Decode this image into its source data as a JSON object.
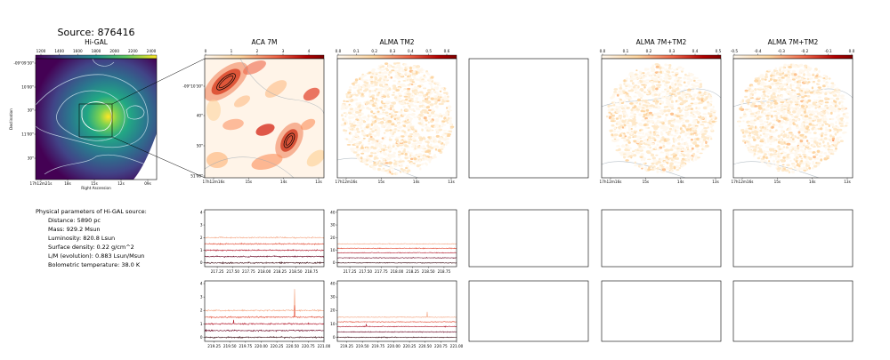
{
  "source_title": "Source: 876416",
  "panel_titles": {
    "higal": "Hi-GAL",
    "aca": "ACA 7M",
    "tm2": "ALMA TM2",
    "m7tm2a": "ALMA 7M+TM2",
    "m7tm2b": "ALMA 7M+TM2"
  },
  "colorbars": {
    "higal": [
      "1200",
      "1400",
      "1600",
      "1800",
      "2000",
      "2200",
      "2400"
    ],
    "aca": [
      "0",
      "1",
      "2",
      "3",
      "4"
    ],
    "tm2": [
      "0.0",
      "0.1",
      "0.2",
      "0.3",
      "0.4",
      "0.5",
      "0.6"
    ],
    "m7tm2a": [
      "0.0",
      "0.1",
      "0.2",
      "0.3",
      "0.4",
      "0.5"
    ],
    "m7tm2b": [
      "-0.5",
      "-0.4",
      "-0.3",
      "-0.2",
      "-0.1",
      "0.0"
    ]
  },
  "higal_axes": {
    "yticks": [
      "-09°09'30\"",
      "10'00\"",
      "30\"",
      "11'00\"",
      "30\""
    ],
    "xticks": [
      "17h12m21s",
      "18s",
      "15s",
      "12s",
      "09s"
    ],
    "xlabel": "Right Ascension",
    "ylabel": "Declination"
  },
  "aca_axes": {
    "yticks": [
      "-09°10'30\"",
      "40\"",
      "50\"",
      "51'00\""
    ],
    "xticks": [
      "17h12m16s",
      "15s",
      "14s",
      "13s"
    ]
  },
  "tm2_axes": {
    "xticks": [
      "17h12m16s",
      "15s",
      "14s",
      "13s"
    ]
  },
  "m7tm2a_axes": {
    "xticks": [
      "17h12m16s",
      "15s",
      "14s",
      "13s"
    ]
  },
  "m7tm2b_axes": {
    "xticks": [
      "17h12m16s",
      "15s",
      "14s",
      "13s"
    ]
  },
  "params": {
    "heading": "Physical parameters of Hi-GAL source:",
    "lines": [
      "Distance: 5890 pc",
      "Mass: 929.2 Msun",
      "Luminosity: 820.8 Lsun",
      "Surface density: 0.22 g/cm^2",
      "L/M (evolution): 0.883 Lsun/Msun",
      "Bolometric temperature: 38.0 K"
    ]
  },
  "chart_data": [
    {
      "type": "line",
      "panel": "aca-spectrum-top",
      "xlim": [
        217.05,
        218.95
      ],
      "ylim": [
        -0.3,
        4.2
      ],
      "xticks": [
        "217.25",
        "217.50",
        "217.75",
        "218.00",
        "218.25",
        "218.50",
        "218.75"
      ],
      "yticks": [
        "0",
        "1",
        "2",
        "3",
        "4"
      ],
      "series": [
        {
          "color": "#f4a582",
          "offset": 2.0,
          "noise": 0.05
        },
        {
          "color": "#e34a33",
          "offset": 1.5,
          "noise": 0.05
        },
        {
          "color": "#b2182b",
          "offset": 1.0,
          "noise": 0.05
        },
        {
          "color": "#67001f",
          "offset": 0.5,
          "noise": 0.05
        },
        {
          "color": "#3b0a12",
          "offset": 0.0,
          "noise": 0.05
        }
      ]
    },
    {
      "type": "line",
      "panel": "tm2-spectrum-top",
      "xlim": [
        217.05,
        218.95
      ],
      "ylim": [
        -3,
        42
      ],
      "xticks": [
        "217.25",
        "217.50",
        "217.75",
        "218.00",
        "218.25",
        "218.50",
        "218.75"
      ],
      "yticks": [
        "0",
        "10",
        "20",
        "30",
        "40"
      ],
      "series": [
        {
          "color": "#f4a582",
          "offset": 15,
          "noise": 0.3
        },
        {
          "color": "#e34a33",
          "offset": 11.5,
          "noise": 0.3
        },
        {
          "color": "#b2182b",
          "offset": 8,
          "noise": 0.3
        },
        {
          "color": "#67001f",
          "offset": 4,
          "noise": 0.3
        },
        {
          "color": "#3b0a12",
          "offset": 0,
          "noise": 0.3
        }
      ]
    },
    {
      "type": "line",
      "panel": "aca-spectrum-bottom",
      "xlim": [
        219.1,
        221.0
      ],
      "ylim": [
        -0.3,
        4.2
      ],
      "xticks": [
        "219.25",
        "219.50",
        "219.75",
        "220.00",
        "220.25",
        "220.50",
        "220.75",
        "221.00"
      ],
      "yticks": [
        "0",
        "1",
        "2",
        "3",
        "4"
      ],
      "series": [
        {
          "color": "#f4a582",
          "offset": 2.0,
          "noise": 0.05,
          "spike_x": 220.53,
          "spike_h": 1.6
        },
        {
          "color": "#e34a33",
          "offset": 1.5,
          "noise": 0.05,
          "spike_x": 220.53,
          "spike_h": 0.9
        },
        {
          "color": "#b2182b",
          "offset": 1.0,
          "noise": 0.05,
          "spike_x": 219.56,
          "spike_h": 0.3
        },
        {
          "color": "#67001f",
          "offset": 0.5,
          "noise": 0.05
        },
        {
          "color": "#3b0a12",
          "offset": 0.0,
          "noise": 0.05
        }
      ]
    },
    {
      "type": "line",
      "panel": "tm2-spectrum-bottom",
      "xlim": [
        219.1,
        221.0
      ],
      "ylim": [
        -3,
        42
      ],
      "xticks": [
        "219.25",
        "219.50",
        "219.75",
        "220.00",
        "220.25",
        "220.50",
        "220.75",
        "221.00"
      ],
      "yticks": [
        "0",
        "10",
        "20",
        "30",
        "40"
      ],
      "series": [
        {
          "color": "#f4a582",
          "offset": 15,
          "noise": 0.3,
          "spike_x": 220.53,
          "spike_h": 4
        },
        {
          "color": "#e34a33",
          "offset": 11.5,
          "noise": 0.3
        },
        {
          "color": "#b2182b",
          "offset": 8,
          "noise": 0.3,
          "spike_x": 219.56,
          "spike_h": 2
        },
        {
          "color": "#67001f",
          "offset": 4,
          "noise": 0.3
        },
        {
          "color": "#3b0a12",
          "offset": 0,
          "noise": 0.3
        }
      ]
    }
  ]
}
